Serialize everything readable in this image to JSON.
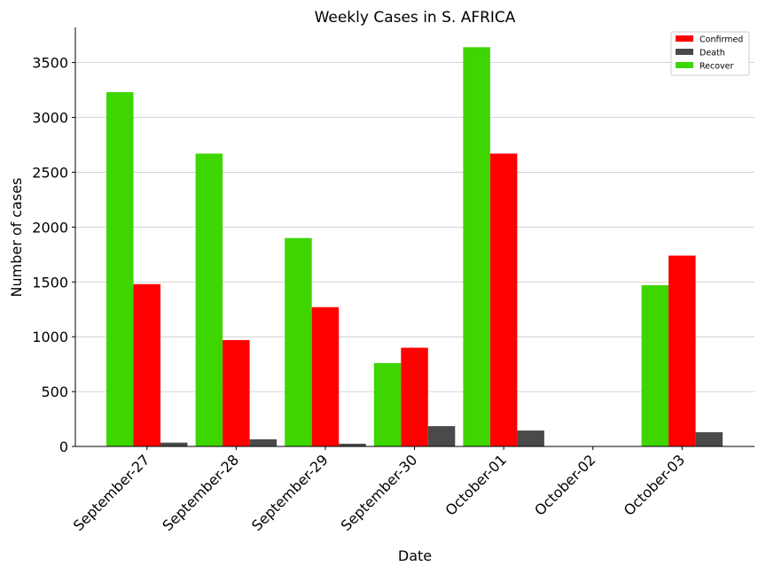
{
  "chart_data": {
    "type": "bar",
    "title": "Weekly Cases in S. AFRICA",
    "xlabel": "Date",
    "ylabel": "Number of cases",
    "categories": [
      "September-27",
      "September-28",
      "September-29",
      "September-30",
      "October-01",
      "October-02",
      "October-03"
    ],
    "ylim": [
      0,
      3820
    ],
    "yticks": [
      0,
      500,
      1000,
      1500,
      2000,
      2500,
      3000,
      3500
    ],
    "grid": "horizontal",
    "legend_position": "top-right",
    "series": [
      {
        "name": "Recover",
        "color": "#3dd600",
        "values": [
          3230,
          2670,
          1900,
          760,
          3640,
          0,
          1470
        ]
      },
      {
        "name": "Confirmed",
        "color": "#ff0000",
        "values": [
          1480,
          970,
          1270,
          900,
          2670,
          0,
          1740
        ]
      },
      {
        "name": "Death",
        "color": "#4a4a4a",
        "values": [
          35,
          65,
          25,
          185,
          145,
          0,
          130
        ]
      }
    ],
    "legend_order": [
      "Confirmed",
      "Death",
      "Recover"
    ]
  }
}
